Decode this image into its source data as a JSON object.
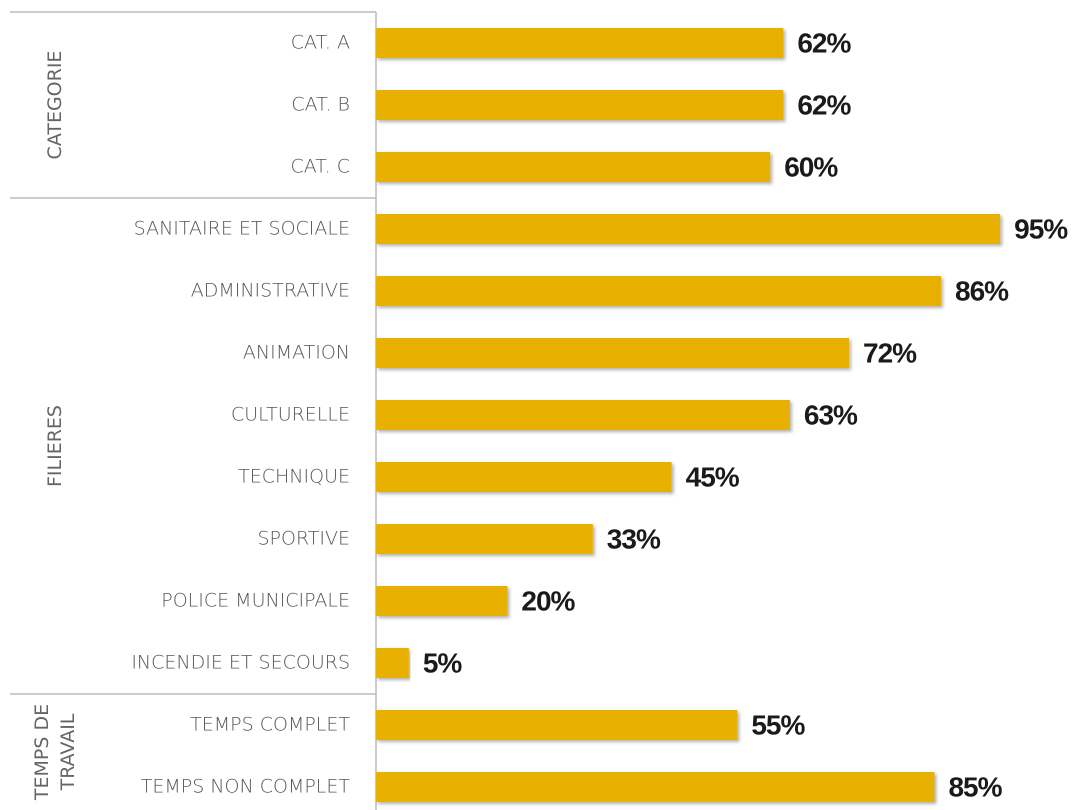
{
  "chart_data": {
    "type": "bar",
    "orientation": "horizontal",
    "color": "#e8b000",
    "groups": [
      {
        "name": "CATEGORIE",
        "categories": [
          "CAT. A",
          "CAT. B",
          "CAT. C"
        ],
        "values": [
          62,
          62,
          60
        ],
        "value_labels": [
          "62%",
          "62%",
          "60%"
        ]
      },
      {
        "name": "FILIERES",
        "categories": [
          "SANITAIRE ET SOCIALE",
          "ADMINISTRATIVE",
          "ANIMATION",
          "CULTURELLE",
          "TECHNIQUE",
          "SPORTIVE",
          "POLICE MUNICIPALE",
          "INCENDIE ET SECOURS"
        ],
        "values": [
          95,
          86,
          72,
          63,
          45,
          33,
          20,
          5
        ],
        "value_labels": [
          "95%",
          "86%",
          "72%",
          "63%",
          "45%",
          "33%",
          "20%",
          "5%"
        ]
      },
      {
        "name": "TEMPS DE TRAVAIL",
        "categories": [
          "TEMPS COMPLET",
          "TEMPS NON COMPLET"
        ],
        "values": [
          55,
          85
        ],
        "value_labels": [
          "55%",
          "85%"
        ]
      }
    ]
  }
}
